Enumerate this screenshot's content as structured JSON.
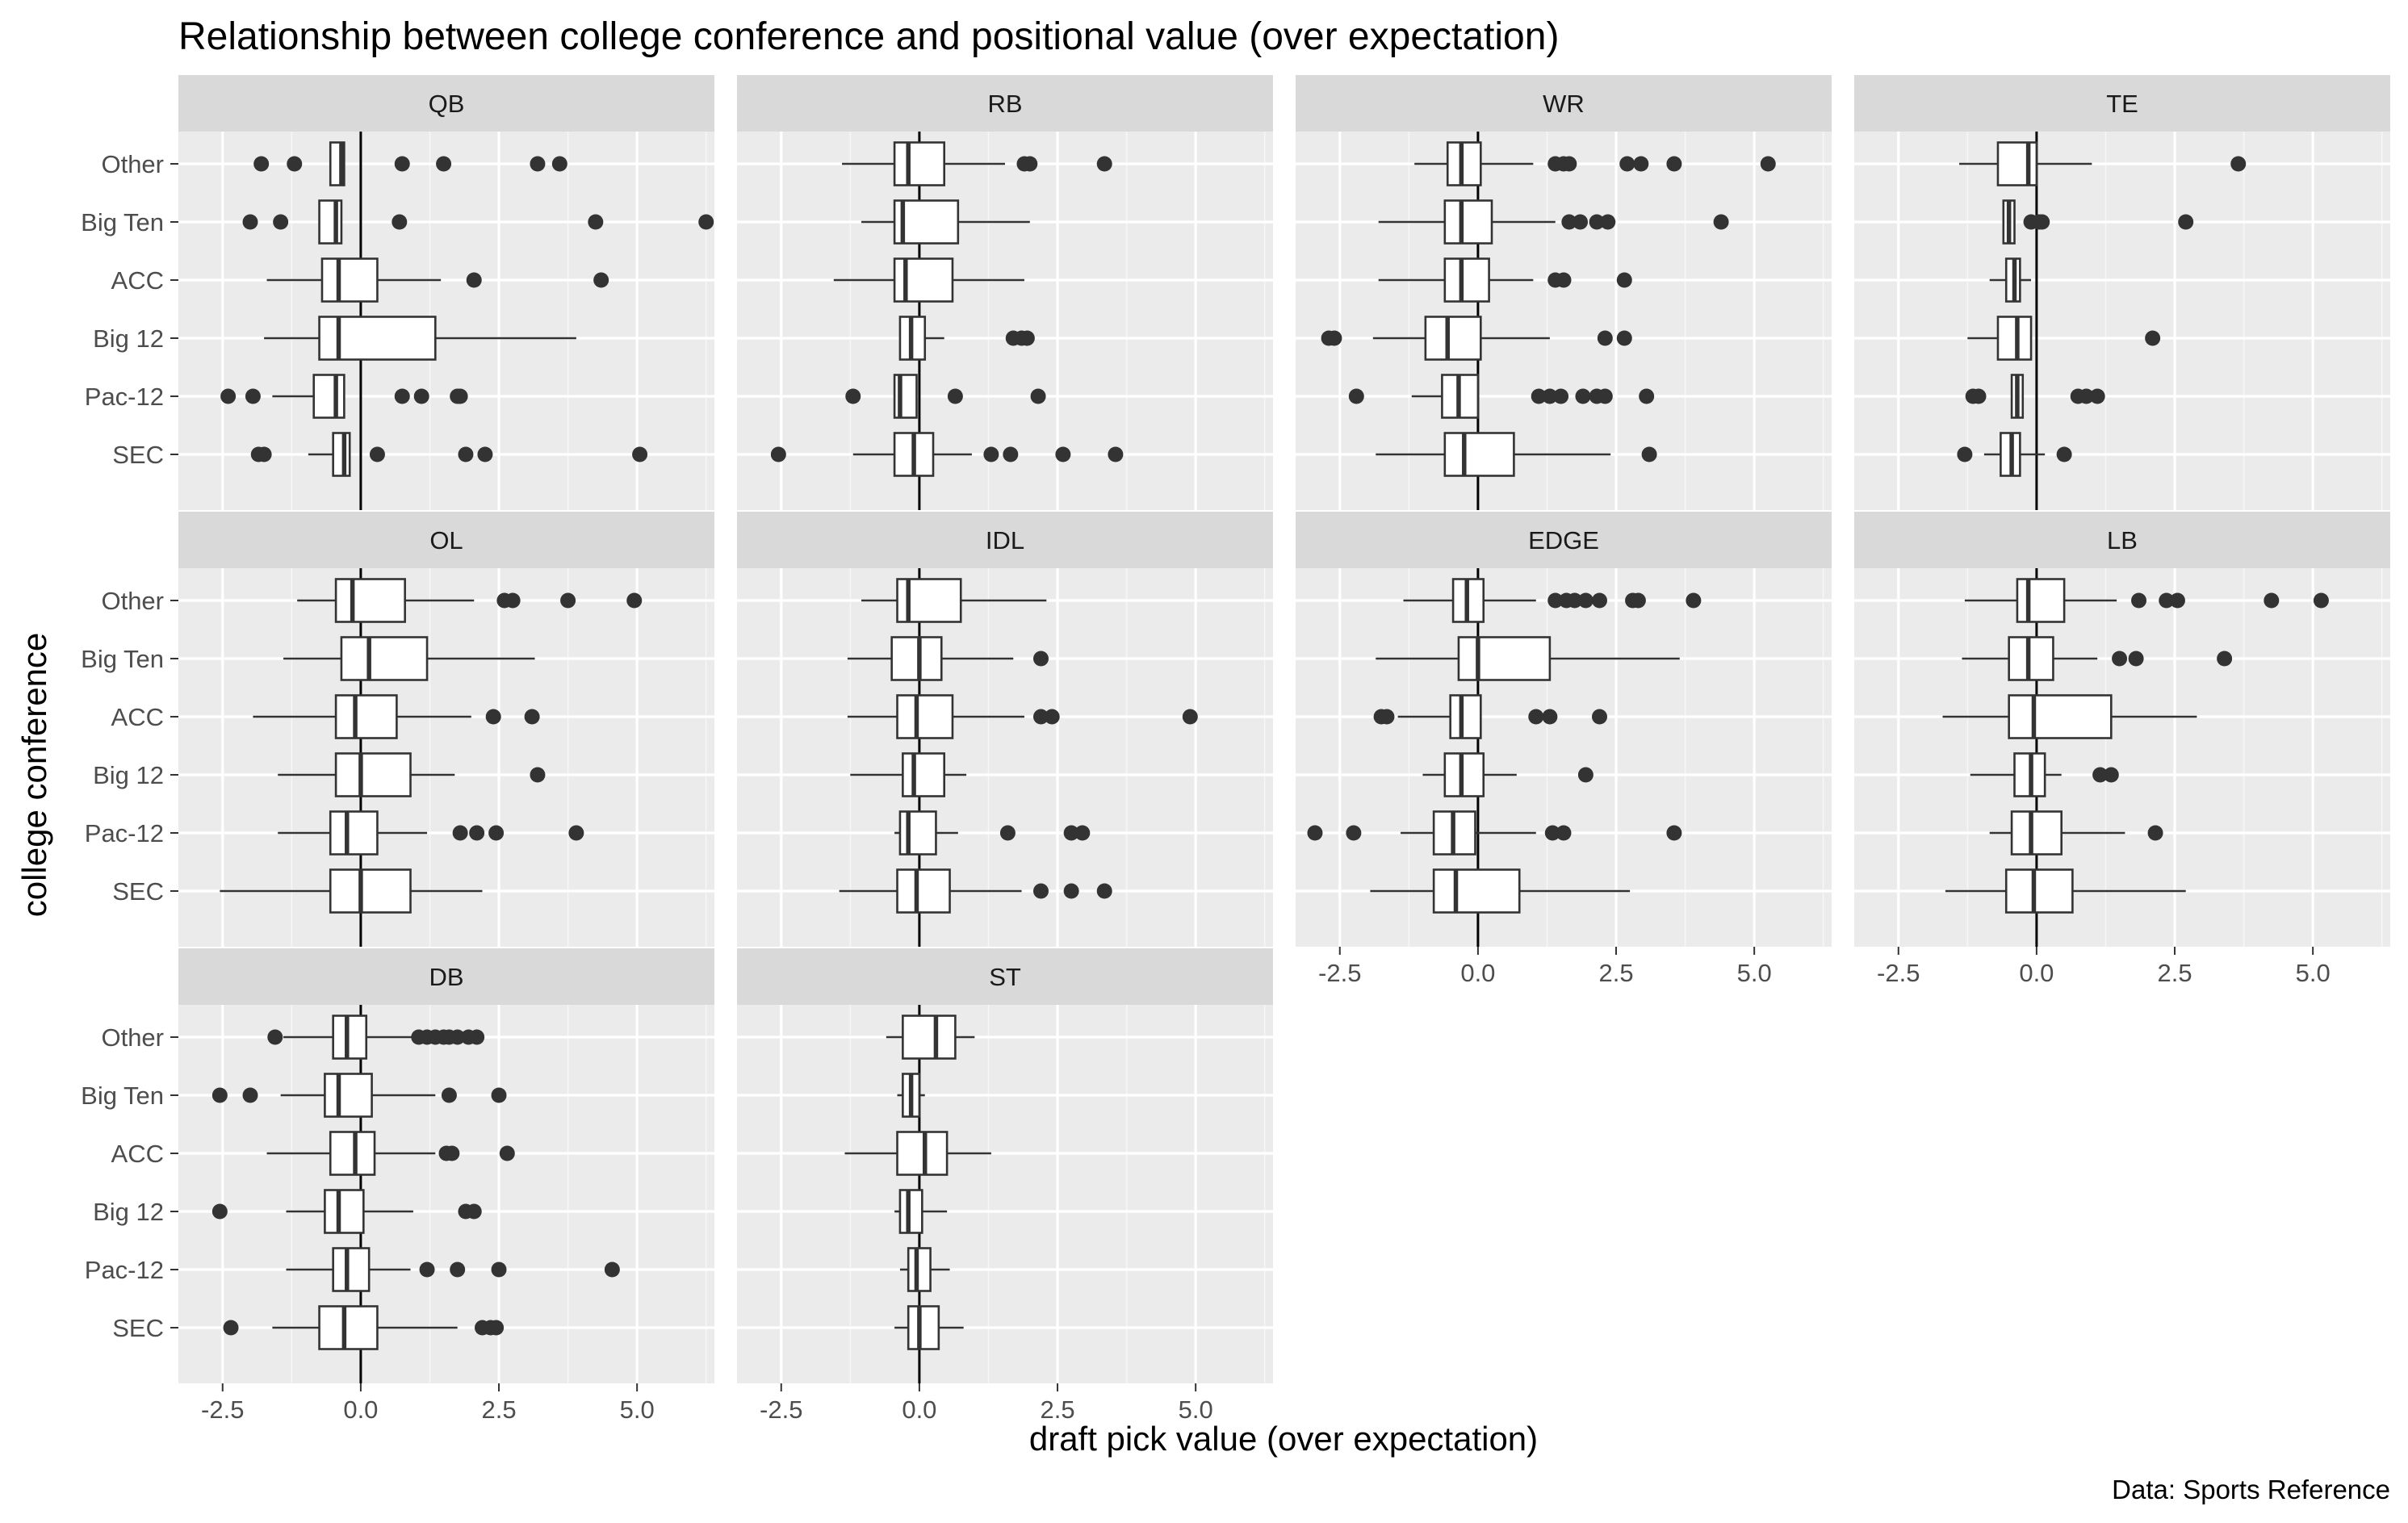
{
  "chart_data": {
    "type": "boxplot",
    "facet": "position",
    "orientation": "horizontal",
    "title": "Relationship between college conference and positional value (over expectation)",
    "xlabel": "draft pick value (over expectation)",
    "ylabel": "college conference",
    "caption": "Data: Sports Reference",
    "categories": [
      "Other",
      "Big Ten",
      "ACC",
      "Big 12",
      "Pac-12",
      "SEC"
    ],
    "x_ticks": [
      -2.5,
      0.0,
      2.5,
      5.0
    ],
    "x_tick_labels": [
      "-2.5",
      "0.0",
      "2.5",
      "5.0"
    ],
    "xlim": [
      -3.3,
      6.4
    ],
    "reference_line_x": 0,
    "grid": true,
    "colors": {
      "panel": "#ebebeb",
      "grid": "#ffffff",
      "strip": "#d9d9d9",
      "box_fill": "#ffffff",
      "box_line": "#333333",
      "outlier": "#333333",
      "reference_line": "#000000"
    },
    "panels": [
      {
        "name": "QB",
        "boxes": [
          {
            "category": "Other",
            "wmin": -0.55,
            "q1": -0.55,
            "med": -0.35,
            "q3": -0.3,
            "wmax": -0.3,
            "outliers": [
              -1.8,
              -1.2,
              0.75,
              1.5,
              3.2,
              3.6
            ]
          },
          {
            "category": "Big Ten",
            "wmin": -0.75,
            "q1": -0.75,
            "med": -0.45,
            "q3": -0.35,
            "wmax": -0.35,
            "outliers": [
              -2.0,
              -1.45,
              0.7,
              4.25,
              6.25
            ]
          },
          {
            "category": "ACC",
            "wmin": -1.7,
            "q1": -0.7,
            "med": -0.4,
            "q3": 0.3,
            "wmax": 1.45,
            "outliers": [
              2.05,
              4.35
            ]
          },
          {
            "category": "Big 12",
            "wmin": -1.75,
            "q1": -0.75,
            "med": -0.4,
            "q3": 1.35,
            "wmax": 3.9,
            "outliers": []
          },
          {
            "category": "Pac-12",
            "wmin": -1.6,
            "q1": -0.85,
            "med": -0.45,
            "q3": -0.3,
            "wmax": -0.3,
            "outliers": [
              -2.4,
              -1.95,
              0.75,
              1.1,
              1.75,
              1.8
            ]
          },
          {
            "category": "SEC",
            "wmin": -0.95,
            "q1": -0.5,
            "med": -0.3,
            "q3": -0.2,
            "wmax": -0.2,
            "outliers": [
              -1.85,
              -1.75,
              0.3,
              1.9,
              2.25,
              5.05
            ]
          }
        ]
      },
      {
        "name": "RB",
        "boxes": [
          {
            "category": "Other",
            "wmin": -1.4,
            "q1": -0.45,
            "med": -0.2,
            "q3": 0.45,
            "wmax": 1.55,
            "outliers": [
              1.9,
              2.0,
              3.35
            ]
          },
          {
            "category": "Big Ten",
            "wmin": -1.05,
            "q1": -0.45,
            "med": -0.3,
            "q3": 0.7,
            "wmax": 2.0,
            "outliers": []
          },
          {
            "category": "ACC",
            "wmin": -1.55,
            "q1": -0.45,
            "med": -0.25,
            "q3": 0.6,
            "wmax": 1.9,
            "outliers": []
          },
          {
            "category": "Big 12",
            "wmin": -0.35,
            "q1": -0.35,
            "med": -0.15,
            "q3": 0.1,
            "wmax": 0.45,
            "outliers": [
              1.7,
              1.85,
              1.95
            ]
          },
          {
            "category": "Pac-12",
            "wmin": -0.45,
            "q1": -0.45,
            "med": -0.35,
            "q3": -0.05,
            "wmax": -0.05,
            "outliers": [
              -1.2,
              0.65,
              2.15
            ]
          },
          {
            "category": "SEC",
            "wmin": -1.2,
            "q1": -0.45,
            "med": -0.1,
            "q3": 0.25,
            "wmax": 0.95,
            "outliers": [
              -2.55,
              1.3,
              1.65,
              2.6,
              3.55
            ]
          }
        ]
      },
      {
        "name": "WR",
        "boxes": [
          {
            "category": "Other",
            "wmin": -1.15,
            "q1": -0.55,
            "med": -0.3,
            "q3": 0.05,
            "wmax": 1.0,
            "outliers": [
              1.4,
              1.55,
              1.65,
              2.7,
              2.95,
              3.55,
              5.25
            ]
          },
          {
            "category": "Big Ten",
            "wmin": -1.8,
            "q1": -0.6,
            "med": -0.3,
            "q3": 0.25,
            "wmax": 1.4,
            "outliers": [
              1.65,
              1.85,
              2.15,
              2.35,
              4.4
            ]
          },
          {
            "category": "ACC",
            "wmin": -1.8,
            "q1": -0.6,
            "med": -0.3,
            "q3": 0.2,
            "wmax": 1.0,
            "outliers": [
              1.4,
              1.55,
              2.65
            ]
          },
          {
            "category": "Big 12",
            "wmin": -1.9,
            "q1": -0.95,
            "med": -0.55,
            "q3": 0.05,
            "wmax": 1.3,
            "outliers": [
              -2.7,
              -2.6,
              2.3,
              2.65
            ]
          },
          {
            "category": "Pac-12",
            "wmin": -1.2,
            "q1": -0.65,
            "med": -0.35,
            "q3": 0.0,
            "wmax": 0.0,
            "outliers": [
              -2.2,
              1.1,
              1.3,
              1.5,
              1.9,
              2.15,
              2.3,
              3.05
            ]
          },
          {
            "category": "SEC",
            "wmin": -1.85,
            "q1": -0.6,
            "med": -0.25,
            "q3": 0.65,
            "wmax": 2.4,
            "outliers": [
              3.1
            ]
          }
        ]
      },
      {
        "name": "TE",
        "boxes": [
          {
            "category": "Other",
            "wmin": -1.4,
            "q1": -0.7,
            "med": -0.15,
            "q3": 0.0,
            "wmax": 1.0,
            "outliers": [
              3.65
            ]
          },
          {
            "category": "Big Ten",
            "wmin": -0.6,
            "q1": -0.6,
            "med": -0.5,
            "q3": -0.4,
            "wmax": -0.4,
            "outliers": [
              -0.1,
              0.05,
              0.1,
              2.7
            ]
          },
          {
            "category": "ACC",
            "wmin": -0.85,
            "q1": -0.55,
            "med": -0.4,
            "q3": -0.3,
            "wmax": -0.1,
            "outliers": []
          },
          {
            "category": "Big 12",
            "wmin": -1.25,
            "q1": -0.7,
            "med": -0.35,
            "q3": -0.1,
            "wmax": -0.1,
            "outliers": [
              2.1
            ]
          },
          {
            "category": "Pac-12",
            "wmin": -0.45,
            "q1": -0.45,
            "med": -0.35,
            "q3": -0.25,
            "wmax": -0.25,
            "outliers": [
              -1.15,
              -1.05,
              0.75,
              0.9,
              1.1
            ]
          },
          {
            "category": "SEC",
            "wmin": -0.95,
            "q1": -0.65,
            "med": -0.45,
            "q3": -0.3,
            "wmax": 0.15,
            "outliers": [
              -1.3,
              0.5
            ]
          }
        ]
      },
      {
        "name": "OL",
        "boxes": [
          {
            "category": "Other",
            "wmin": -1.15,
            "q1": -0.45,
            "med": -0.15,
            "q3": 0.8,
            "wmax": 2.05,
            "outliers": [
              2.6,
              2.75,
              3.75,
              4.95
            ]
          },
          {
            "category": "Big Ten",
            "wmin": -1.4,
            "q1": -0.35,
            "med": 0.15,
            "q3": 1.2,
            "wmax": 3.15,
            "outliers": []
          },
          {
            "category": "ACC",
            "wmin": -1.95,
            "q1": -0.45,
            "med": -0.1,
            "q3": 0.65,
            "wmax": 2.0,
            "outliers": [
              2.4,
              3.1
            ]
          },
          {
            "category": "Big 12",
            "wmin": -1.5,
            "q1": -0.45,
            "med": 0.0,
            "q3": 0.9,
            "wmax": 1.7,
            "outliers": [
              3.2
            ]
          },
          {
            "category": "Pac-12",
            "wmin": -1.5,
            "q1": -0.55,
            "med": -0.25,
            "q3": 0.3,
            "wmax": 1.2,
            "outliers": [
              1.8,
              2.1,
              2.45,
              3.9
            ]
          },
          {
            "category": "SEC",
            "wmin": -2.55,
            "q1": -0.55,
            "med": 0.0,
            "q3": 0.9,
            "wmax": 2.2,
            "outliers": []
          }
        ]
      },
      {
        "name": "IDL",
        "boxes": [
          {
            "category": "Other",
            "wmin": -1.05,
            "q1": -0.4,
            "med": -0.2,
            "q3": 0.75,
            "wmax": 2.3,
            "outliers": []
          },
          {
            "category": "Big Ten",
            "wmin": -1.3,
            "q1": -0.5,
            "med": 0.0,
            "q3": 0.4,
            "wmax": 1.7,
            "outliers": [
              2.2
            ]
          },
          {
            "category": "ACC",
            "wmin": -1.3,
            "q1": -0.4,
            "med": -0.05,
            "q3": 0.6,
            "wmax": 1.9,
            "outliers": [
              2.2,
              2.4,
              4.9
            ]
          },
          {
            "category": "Big 12",
            "wmin": -1.25,
            "q1": -0.3,
            "med": -0.1,
            "q3": 0.45,
            "wmax": 0.85,
            "outliers": []
          },
          {
            "category": "Pac-12",
            "wmin": -0.45,
            "q1": -0.35,
            "med": -0.2,
            "q3": 0.3,
            "wmax": 0.7,
            "outliers": [
              1.6,
              2.75,
              2.95
            ]
          },
          {
            "category": "SEC",
            "wmin": -1.45,
            "q1": -0.4,
            "med": -0.05,
            "q3": 0.55,
            "wmax": 1.85,
            "outliers": [
              2.2,
              2.75,
              3.35
            ]
          }
        ]
      },
      {
        "name": "EDGE",
        "boxes": [
          {
            "category": "Other",
            "wmin": -1.35,
            "q1": -0.45,
            "med": -0.2,
            "q3": 0.1,
            "wmax": 1.05,
            "outliers": [
              1.4,
              1.6,
              1.75,
              1.95,
              2.2,
              2.8,
              2.9,
              3.9
            ]
          },
          {
            "category": "Big Ten",
            "wmin": -1.85,
            "q1": -0.35,
            "med": 0.0,
            "q3": 1.3,
            "wmax": 3.65,
            "outliers": []
          },
          {
            "category": "ACC",
            "wmin": -1.45,
            "q1": -0.5,
            "med": -0.3,
            "q3": 0.05,
            "wmax": 0.05,
            "outliers": [
              -1.75,
              -1.65,
              1.05,
              1.3,
              2.2
            ]
          },
          {
            "category": "Big 12",
            "wmin": -1.0,
            "q1": -0.6,
            "med": -0.3,
            "q3": 0.1,
            "wmax": 0.7,
            "outliers": [
              1.95
            ]
          },
          {
            "category": "Pac-12",
            "wmin": -1.4,
            "q1": -0.8,
            "med": -0.45,
            "q3": -0.05,
            "wmax": 1.05,
            "outliers": [
              -2.95,
              -2.25,
              1.35,
              1.55,
              3.55
            ]
          },
          {
            "category": "SEC",
            "wmin": -1.95,
            "q1": -0.8,
            "med": -0.4,
            "q3": 0.75,
            "wmax": 2.75,
            "outliers": []
          }
        ]
      },
      {
        "name": "LB",
        "boxes": [
          {
            "category": "Other",
            "wmin": -1.3,
            "q1": -0.35,
            "med": -0.15,
            "q3": 0.5,
            "wmax": 1.45,
            "outliers": [
              1.85,
              2.35,
              2.55,
              4.25,
              5.15
            ]
          },
          {
            "category": "Big Ten",
            "wmin": -1.35,
            "q1": -0.5,
            "med": -0.15,
            "q3": 0.3,
            "wmax": 1.1,
            "outliers": [
              1.5,
              1.8,
              3.4
            ]
          },
          {
            "category": "ACC",
            "wmin": -1.7,
            "q1": -0.5,
            "med": -0.05,
            "q3": 1.35,
            "wmax": 2.9,
            "outliers": []
          },
          {
            "category": "Big 12",
            "wmin": -1.2,
            "q1": -0.4,
            "med": -0.1,
            "q3": 0.15,
            "wmax": 0.45,
            "outliers": [
              1.15,
              1.35
            ]
          },
          {
            "category": "Pac-12",
            "wmin": -0.85,
            "q1": -0.45,
            "med": -0.1,
            "q3": 0.45,
            "wmax": 1.6,
            "outliers": [
              2.15
            ]
          },
          {
            "category": "SEC",
            "wmin": -1.65,
            "q1": -0.55,
            "med": -0.05,
            "q3": 0.65,
            "wmax": 2.7,
            "outliers": []
          }
        ]
      },
      {
        "name": "DB",
        "boxes": [
          {
            "category": "Other",
            "wmin": -1.4,
            "q1": -0.5,
            "med": -0.25,
            "q3": 0.1,
            "wmax": 0.95,
            "outliers": [
              -1.55,
              1.05,
              1.2,
              1.35,
              1.5,
              1.6,
              1.75,
              1.95,
              2.1
            ]
          },
          {
            "category": "Big Ten",
            "wmin": -1.45,
            "q1": -0.65,
            "med": -0.4,
            "q3": 0.2,
            "wmax": 1.35,
            "outliers": [
              -2.55,
              -2.0,
              1.6,
              2.5
            ]
          },
          {
            "category": "ACC",
            "wmin": -1.7,
            "q1": -0.55,
            "med": -0.1,
            "q3": 0.25,
            "wmax": 1.35,
            "outliers": [
              1.55,
              1.65,
              2.65
            ]
          },
          {
            "category": "Big 12",
            "wmin": -1.35,
            "q1": -0.65,
            "med": -0.4,
            "q3": 0.05,
            "wmax": 0.95,
            "outliers": [
              -2.55,
              1.9,
              2.05
            ]
          },
          {
            "category": "Pac-12",
            "wmin": -1.35,
            "q1": -0.5,
            "med": -0.25,
            "q3": 0.15,
            "wmax": 0.9,
            "outliers": [
              1.2,
              1.75,
              2.5,
              4.55
            ]
          },
          {
            "category": "SEC",
            "wmin": -1.6,
            "q1": -0.75,
            "med": -0.3,
            "q3": 0.3,
            "wmax": 1.75,
            "outliers": [
              -2.35,
              2.2,
              2.35,
              2.45
            ]
          }
        ]
      },
      {
        "name": "ST",
        "boxes": [
          {
            "category": "Other",
            "wmin": -0.6,
            "q1": -0.3,
            "med": 0.3,
            "q3": 0.65,
            "wmax": 1.0,
            "outliers": []
          },
          {
            "category": "Big Ten",
            "wmin": -0.4,
            "q1": -0.3,
            "med": -0.15,
            "q3": 0.0,
            "wmax": 0.1,
            "outliers": []
          },
          {
            "category": "ACC",
            "wmin": -1.35,
            "q1": -0.4,
            "med": 0.1,
            "q3": 0.5,
            "wmax": 1.3,
            "outliers": []
          },
          {
            "category": "Big 12",
            "wmin": -0.45,
            "q1": -0.35,
            "med": -0.2,
            "q3": 0.05,
            "wmax": 0.5,
            "outliers": []
          },
          {
            "category": "Pac-12",
            "wmin": -0.35,
            "q1": -0.2,
            "med": -0.05,
            "q3": 0.2,
            "wmax": 0.55,
            "outliers": []
          },
          {
            "category": "SEC",
            "wmin": -0.45,
            "q1": -0.2,
            "med": 0.0,
            "q3": 0.35,
            "wmax": 0.8,
            "outliers": []
          }
        ]
      }
    ]
  }
}
